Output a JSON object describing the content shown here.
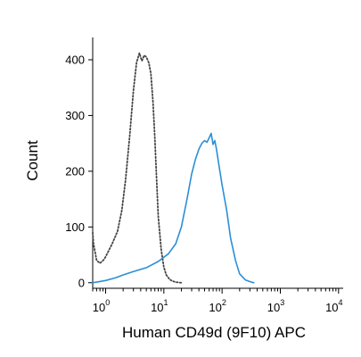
{
  "chart_data": {
    "type": "line",
    "xlabel": "Human CD49d (9F10) APC",
    "ylabel": "Count",
    "x_scale": "log",
    "xlim": [
      0.6,
      12000
    ],
    "ylim": [
      -10,
      440
    ],
    "grid": false,
    "legend": "none",
    "x_ticks": [
      {
        "value": 1,
        "base": "10",
        "exp": "0"
      },
      {
        "value": 10,
        "base": "10",
        "exp": "1"
      },
      {
        "value": 100,
        "base": "10",
        "exp": "2"
      },
      {
        "value": 1000,
        "base": "10",
        "exp": "3"
      },
      {
        "value": 10000,
        "base": "10",
        "exp": "4"
      }
    ],
    "y_ticks": [
      {
        "value": 0,
        "label": "0"
      },
      {
        "value": 100,
        "label": "100"
      },
      {
        "value": 200,
        "label": "200"
      },
      {
        "value": 300,
        "label": "300"
      },
      {
        "value": 400,
        "label": "400"
      }
    ],
    "series": [
      {
        "style": "dotted",
        "color": "#444444",
        "x": [
          0.6,
          0.62,
          0.7,
          0.8,
          0.95,
          1.1,
          1.3,
          1.6,
          1.9,
          2.2,
          2.6,
          3.0,
          3.4,
          3.8,
          4.2,
          4.6,
          5.0,
          5.5,
          6.0,
          6.5,
          7.0,
          7.5,
          8.0,
          9.0,
          10.0,
          11.0,
          12.5,
          14.0,
          16.0,
          20.0
        ],
        "y": [
          90,
          70,
          40,
          35,
          42,
          55,
          70,
          92,
          130,
          185,
          265,
          345,
          395,
          412,
          398,
          408,
          405,
          395,
          375,
          325,
          260,
          185,
          120,
          60,
          28,
          14,
          6,
          3,
          1,
          0
        ]
      },
      {
        "style": "solid",
        "color": "#2a8fd6",
        "x": [
          0.6,
          1.0,
          1.5,
          2.0,
          3.0,
          5.0,
          8.0,
          12.0,
          16.0,
          20.0,
          25.0,
          30.0,
          35.0,
          40.0,
          45.0,
          50.0,
          55.0,
          60.0,
          65.0,
          70.0,
          75.0,
          80.0,
          90.0,
          100.0,
          120.0,
          140.0,
          170.0,
          200.0,
          250.0,
          300.0,
          350.0
        ],
        "y": [
          0,
          4,
          9,
          14,
          20,
          27,
          38,
          52,
          70,
          100,
          150,
          195,
          222,
          240,
          250,
          255,
          252,
          260,
          268,
          248,
          255,
          240,
          205,
          175,
          130,
          80,
          40,
          16,
          5,
          2,
          0
        ]
      }
    ]
  }
}
